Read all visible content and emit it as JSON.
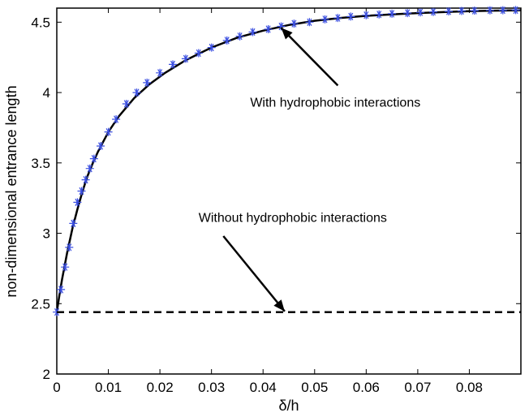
{
  "chart_data": {
    "type": "line",
    "title": "",
    "xlabel": "δ/h",
    "ylabel": "non-dimensional entrance length",
    "xlim": [
      0,
      0.09
    ],
    "ylim": [
      2,
      4.6
    ],
    "xticks": [
      0,
      0.01,
      0.02,
      0.03,
      0.04,
      0.05,
      0.06,
      0.07,
      0.08
    ],
    "xtick_labels": [
      "0",
      "0.01",
      "0.02",
      "0.03",
      "0.04",
      "0.05",
      "0.06",
      "0.07",
      "0.08"
    ],
    "yticks": [
      2,
      2.5,
      3,
      3.5,
      4,
      4.5
    ],
    "ytick_labels": [
      "2",
      "2.5",
      "3",
      "3.5",
      "4",
      "4.5"
    ],
    "grid": false,
    "series": [
      {
        "style": "solid",
        "color": "#000000",
        "x": [
          0,
          0.0005,
          0.001,
          0.002,
          0.003,
          0.004,
          0.005,
          0.006,
          0.007,
          0.008,
          0.01,
          0.012,
          0.015,
          0.018,
          0.021,
          0.025,
          0.03,
          0.035,
          0.04,
          0.045,
          0.05,
          0.055,
          0.06,
          0.065,
          0.07,
          0.075,
          0.08,
          0.085,
          0.09
        ],
        "y": [
          2.44,
          2.56,
          2.67,
          2.86,
          3.03,
          3.17,
          3.3,
          3.41,
          3.5,
          3.58,
          3.72,
          3.83,
          3.96,
          4.06,
          4.14,
          4.23,
          4.32,
          4.39,
          4.44,
          4.48,
          4.51,
          4.53,
          4.545,
          4.555,
          4.565,
          4.572,
          4.578,
          4.582,
          4.585
        ]
      },
      {
        "style": "markers",
        "marker": "asterisk",
        "color": "#3a4ee0",
        "x": [
          0,
          0.0008,
          0.0016,
          0.0024,
          0.0032,
          0.004,
          0.0048,
          0.0056,
          0.0064,
          0.0072,
          0.0085,
          0.01,
          0.0115,
          0.0135,
          0.0155,
          0.0175,
          0.02,
          0.0225,
          0.025,
          0.0275,
          0.03,
          0.033,
          0.0355,
          0.038,
          0.041,
          0.0435,
          0.046,
          0.049,
          0.052,
          0.0545,
          0.057,
          0.06,
          0.0625,
          0.065,
          0.068,
          0.0705,
          0.073,
          0.076,
          0.0785,
          0.081,
          0.084,
          0.0865,
          0.089
        ],
        "y": [
          2.44,
          2.6,
          2.76,
          2.9,
          3.07,
          3.22,
          3.3,
          3.38,
          3.46,
          3.53,
          3.62,
          3.72,
          3.81,
          3.92,
          4.0,
          4.07,
          4.14,
          4.2,
          4.24,
          4.28,
          4.32,
          4.37,
          4.4,
          4.43,
          4.45,
          4.47,
          4.49,
          4.5,
          4.52,
          4.53,
          4.54,
          4.55,
          4.555,
          4.56,
          4.565,
          4.57,
          4.573,
          4.577,
          4.58,
          4.582,
          4.584,
          4.585,
          4.586
        ]
      },
      {
        "style": "dashed",
        "color": "#000000",
        "x": [
          0,
          0.09
        ],
        "y": [
          2.44,
          2.44
        ]
      }
    ],
    "annotations": [
      {
        "text": "With hydrophobic interactions",
        "text_x": 0.0375,
        "text_y": 3.9,
        "arrow_from": [
          0.0545,
          4.05
        ],
        "arrow_to": [
          0.0435,
          4.46
        ]
      },
      {
        "text": "Without hydrophobic interactions",
        "text_x": 0.0275,
        "text_y": 3.08,
        "arrow_from": [
          0.0323,
          2.98
        ],
        "arrow_to": [
          0.0442,
          2.445
        ]
      }
    ]
  }
}
